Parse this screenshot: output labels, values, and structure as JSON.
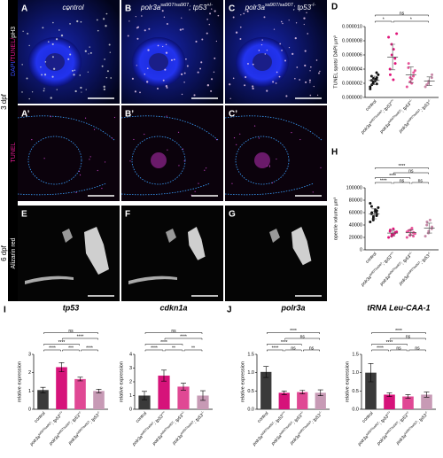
{
  "figure": {
    "panels": [
      "A",
      "B",
      "C",
      "A’",
      "B’",
      "C’",
      "E",
      "F",
      "G"
    ],
    "chart_letters": [
      "D",
      "H",
      "I",
      "J"
    ],
    "column_headers": [
      [
        {
          "text": "control"
        }
      ],
      [
        {
          "text": "polr3a"
        },
        {
          "sup": "sa907/sa907"
        },
        {
          "text": "; tp53"
        },
        {
          "sup": "+/-"
        }
      ],
      [
        {
          "text": "polr3a"
        },
        {
          "sup": "sa907/sa907"
        },
        {
          "text": "; tp53"
        },
        {
          "sup": "-/-"
        }
      ]
    ],
    "stages": [
      "3 dpf",
      "6 dpf"
    ],
    "stain_1": [
      {
        "text": "DAPI",
        "color": "#3b4cff"
      },
      {
        "text": "/TUNEL/",
        "color": "#e01890"
      },
      {
        "text": "pH3",
        "color": "#ffffff"
      }
    ],
    "stain_2": "TUNEL",
    "stain_3": "Alizarin red"
  },
  "chart_data": [
    {
      "type": "dot",
      "ylabel": "TUNEL spots/ DAPI µm³",
      "categories": [
        [
          {
            "text": "control"
          }
        ],
        [
          {
            "text": "polr3a"
          },
          {
            "sup": "sa907/sa907"
          },
          {
            "text": "; tp53"
          },
          {
            "sup": "+/+"
          }
        ],
        [
          {
            "text": "polr3a"
          },
          {
            "sup": "sa907/sa907"
          },
          {
            "text": "; tp53"
          },
          {
            "sup": "+/-"
          }
        ],
        [
          {
            "text": "polr3a"
          },
          {
            "sup": "sa907/sa907"
          },
          {
            "text": "; tp53"
          },
          {
            "sup": "-/-"
          }
        ]
      ],
      "colors": [
        "#111111",
        "#e0157a",
        "#e8559a",
        "#c889a8"
      ],
      "points": [
        [
          1.5e-06,
          2e-06,
          2.2e-06,
          2.5e-06,
          2.8e-06,
          3e-06,
          1.8e-06,
          2.3e-06,
          2.6e-06,
          3.2e-06,
          1.2e-06,
          2.1e-06,
          2.7e-06,
          3.5e-06,
          1.9e-06,
          2.4e-06
        ],
        [
          8.5e-06,
          7.5e-06,
          6e-06,
          5.5e-06,
          4.8e-06,
          4e-06,
          3.2e-06,
          2.5e-06,
          6.8e-06,
          9e-06
        ],
        [
          1.5e-06,
          2.2e-06,
          2.8e-06,
          3e-06,
          3.5e-06,
          4.2e-06,
          4.8e-06,
          2e-06,
          2.6e-06,
          3.8e-06
        ],
        [
          1.5e-06,
          2e-06,
          2.3e-06,
          2.8e-06,
          3.2e-06,
          1.8e-06
        ]
      ],
      "values": [
        2.4e-06,
        5.7e-06,
        3.2e-06,
        2.3e-06
      ],
      "errors": [
        6e-07,
        1.8e-06,
        1.1e-06,
        6e-07
      ],
      "ylim": [
        0,
        1e-05
      ],
      "yticks": [
        {
          "value": 0,
          "label": "0.000000"
        },
        {
          "value": 2e-06,
          "label": "0.000002"
        },
        {
          "value": 4e-06,
          "label": "0.000004"
        },
        {
          "value": 6e-06,
          "label": "0.000006"
        },
        {
          "value": 8e-06,
          "label": "0.000008"
        },
        {
          "value": 1e-05,
          "label": "0.000010"
        }
      ],
      "brackets": [
        {
          "groups": [
            0,
            1
          ],
          "label": "*"
        },
        {
          "groups": [
            1,
            3
          ],
          "label": "*"
        },
        {
          "groups": [
            0,
            3
          ],
          "label": "ns"
        }
      ]
    },
    {
      "type": "dot",
      "ylabel": "opercle volume µm³",
      "categories": [
        [
          {
            "text": "control"
          }
        ],
        [
          {
            "text": "polr3a"
          },
          {
            "sup": "sa907/sa907"
          },
          {
            "text": "; tp53"
          },
          {
            "sup": "+/+"
          }
        ],
        [
          {
            "text": "polr3a"
          },
          {
            "sup": "sa907/sa907"
          },
          {
            "text": "; tp53"
          },
          {
            "sup": "+/-"
          }
        ],
        [
          {
            "text": "polr3a"
          },
          {
            "sup": "sa907/sa907"
          },
          {
            "text": "; tp53"
          },
          {
            "sup": "-/-"
          }
        ]
      ],
      "colors": [
        "#111111",
        "#e0157a",
        "#e8559a",
        "#c889a8"
      ],
      "points": [
        [
          45000,
          50000,
          52000,
          55000,
          57000,
          58000,
          60000,
          62000,
          65000,
          68000,
          75000,
          48000,
          54000,
          59000,
          63000,
          70000
        ],
        [
          20000,
          22000,
          25000,
          27000,
          28000,
          30000,
          32000,
          34000,
          24000,
          29000
        ],
        [
          20000,
          23000,
          25000,
          27000,
          28000,
          30000,
          31000,
          33000,
          35000,
          26000,
          29000,
          24000,
          32000,
          22000
        ],
        [
          22000,
          27000,
          30000,
          34000,
          37000,
          40000,
          45000,
          48000
        ]
      ],
      "values": [
        58000,
        27000,
        28000,
        35000
      ],
      "errors": [
        8000,
        4500,
        4500,
        8000
      ],
      "ylim": [
        0,
        100000
      ],
      "yticks": [
        0,
        20000,
        40000,
        60000,
        80000,
        100000
      ],
      "brackets": [
        {
          "groups": [
            0,
            1
          ],
          "label": "****"
        },
        {
          "groups": [
            1,
            2
          ],
          "label": "ns"
        },
        {
          "groups": [
            2,
            3
          ],
          "label": "ns"
        },
        {
          "groups": [
            0,
            2
          ],
          "label": "****"
        },
        {
          "groups": [
            1,
            3
          ],
          "label": "ns"
        },
        {
          "groups": [
            0,
            3
          ],
          "label": "****"
        }
      ]
    },
    {
      "type": "bar",
      "title": "tp53",
      "ylabel": "relative expression",
      "categories": [
        [
          {
            "text": "control"
          }
        ],
        [
          {
            "text": "polr3a"
          },
          {
            "sup": "sa907/sa907"
          },
          {
            "text": "; tp53"
          },
          {
            "sup": "+/+"
          }
        ],
        [
          {
            "text": "polr3a"
          },
          {
            "sup": "sa907/sa907"
          },
          {
            "text": "; tp53"
          },
          {
            "sup": "+/-"
          }
        ],
        [
          {
            "text": "polr3a"
          },
          {
            "sup": "sa907/sa907"
          },
          {
            "text": "; tp53"
          },
          {
            "sup": "-/-"
          }
        ]
      ],
      "colors": [
        "#3a3a3a",
        "#d6137a",
        "#e04894",
        "#c79ab5"
      ],
      "values": [
        1.05,
        2.3,
        1.65,
        1.0
      ],
      "errors": [
        0.15,
        0.25,
        0.1,
        0.1
      ],
      "ylim": [
        0,
        3
      ],
      "yticks": [
        0,
        1,
        2,
        3
      ],
      "brackets": [
        {
          "groups": [
            0,
            1
          ],
          "label": "****"
        },
        {
          "groups": [
            1,
            2
          ],
          "label": "***"
        },
        {
          "groups": [
            2,
            3
          ],
          "label": "****"
        },
        {
          "groups": [
            0,
            2
          ],
          "label": "****"
        },
        {
          "groups": [
            1,
            3
          ],
          "label": "****"
        },
        {
          "groups": [
            0,
            3
          ],
          "label": "ns"
        }
      ]
    },
    {
      "type": "bar",
      "title": "cdkn1a",
      "ylabel": "relative expression",
      "categories": [
        [
          {
            "text": "control"
          }
        ],
        [
          {
            "text": "polr3a"
          },
          {
            "sup": "sa907/sa907"
          },
          {
            "text": "; tp53"
          },
          {
            "sup": "+/+"
          }
        ],
        [
          {
            "text": "polr3a"
          },
          {
            "sup": "sa907/sa907"
          },
          {
            "text": "; tp53"
          },
          {
            "sup": "+/-"
          }
        ],
        [
          {
            "text": "polr3a"
          },
          {
            "sup": "sa907/sa907"
          },
          {
            "text": "; tp53"
          },
          {
            "sup": "-/-"
          }
        ]
      ],
      "colors": [
        "#3a3a3a",
        "#d6137a",
        "#e04894",
        "#c79ab5"
      ],
      "values": [
        1.0,
        2.45,
        1.65,
        1.0
      ],
      "errors": [
        0.3,
        0.4,
        0.25,
        0.35
      ],
      "ylim": [
        0,
        4
      ],
      "yticks": [
        0,
        1,
        2,
        3,
        4
      ],
      "brackets": [
        {
          "groups": [
            0,
            1
          ],
          "label": "****"
        },
        {
          "groups": [
            1,
            2
          ],
          "label": "**"
        },
        {
          "groups": [
            2,
            3
          ],
          "label": "**"
        },
        {
          "groups": [
            0,
            2
          ],
          "label": "****"
        },
        {
          "groups": [
            1,
            3
          ],
          "label": "****"
        },
        {
          "groups": [
            0,
            3
          ],
          "label": "ns"
        }
      ]
    },
    {
      "type": "bar",
      "title": "polr3a",
      "ylabel": "relative expression",
      "categories": [
        [
          {
            "text": "control"
          }
        ],
        [
          {
            "text": "polr3a"
          },
          {
            "sup": "sa907/sa907"
          },
          {
            "text": "; tp53"
          },
          {
            "sup": "+/+"
          }
        ],
        [
          {
            "text": "polr3a"
          },
          {
            "sup": "sa907/sa907"
          },
          {
            "text": "; tp53"
          },
          {
            "sup": "+/-"
          }
        ],
        [
          {
            "text": "polr3a"
          },
          {
            "sup": "sa907/sa907"
          },
          {
            "text": "; tp53"
          },
          {
            "sup": "-/-"
          }
        ]
      ],
      "colors": [
        "#3a3a3a",
        "#d6137a",
        "#e04894",
        "#c79ab5"
      ],
      "values": [
        1.02,
        0.45,
        0.47,
        0.45
      ],
      "errors": [
        0.15,
        0.05,
        0.05,
        0.08
      ],
      "ylim": [
        0,
        1.5
      ],
      "yticks": [
        {
          "value": 0,
          "label": "0.0"
        },
        0.5,
        {
          "value": 1,
          "label": "1.0"
        },
        1.5
      ],
      "brackets": [
        {
          "groups": [
            0,
            1
          ],
          "label": "****"
        },
        {
          "groups": [
            1,
            2
          ],
          "label": "ns"
        },
        {
          "groups": [
            2,
            3
          ],
          "label": "ns"
        },
        {
          "groups": [
            0,
            2
          ],
          "label": "****"
        },
        {
          "groups": [
            1,
            3
          ],
          "label": "ns"
        },
        {
          "groups": [
            0,
            3
          ],
          "label": "****"
        }
      ]
    },
    {
      "type": "bar",
      "title": "tRNA Leu-CAA-1",
      "ylabel": "relative expression",
      "categories": [
        [
          {
            "text": "control"
          }
        ],
        [
          {
            "text": "polr3a"
          },
          {
            "sup": "sa907/sa907"
          },
          {
            "text": "; tp53"
          },
          {
            "sup": "+/+"
          }
        ],
        [
          {
            "text": "polr3a"
          },
          {
            "sup": "sa907/sa907"
          },
          {
            "text": "; tp53"
          },
          {
            "sup": "+/-"
          }
        ],
        [
          {
            "text": "polr3a"
          },
          {
            "sup": "sa907/sa907"
          },
          {
            "text": "; tp53"
          },
          {
            "sup": "-/-"
          }
        ]
      ],
      "colors": [
        "#3a3a3a",
        "#d6137a",
        "#e04894",
        "#c79ab5"
      ],
      "values": [
        1.0,
        0.4,
        0.35,
        0.4
      ],
      "errors": [
        0.25,
        0.05,
        0.05,
        0.07
      ],
      "ylim": [
        0,
        1.5
      ],
      "yticks": [
        {
          "value": 0,
          "label": "0.0"
        },
        0.5,
        {
          "value": 1,
          "label": "1.0"
        },
        1.5
      ],
      "brackets": [
        {
          "groups": [
            0,
            1
          ],
          "label": "****"
        },
        {
          "groups": [
            1,
            2
          ],
          "label": "ns"
        },
        {
          "groups": [
            2,
            3
          ],
          "label": "ns"
        },
        {
          "groups": [
            0,
            2
          ],
          "label": "****"
        },
        {
          "groups": [
            1,
            3
          ],
          "label": "ns"
        },
        {
          "groups": [
            0,
            3
          ],
          "label": "****"
        }
      ]
    }
  ]
}
